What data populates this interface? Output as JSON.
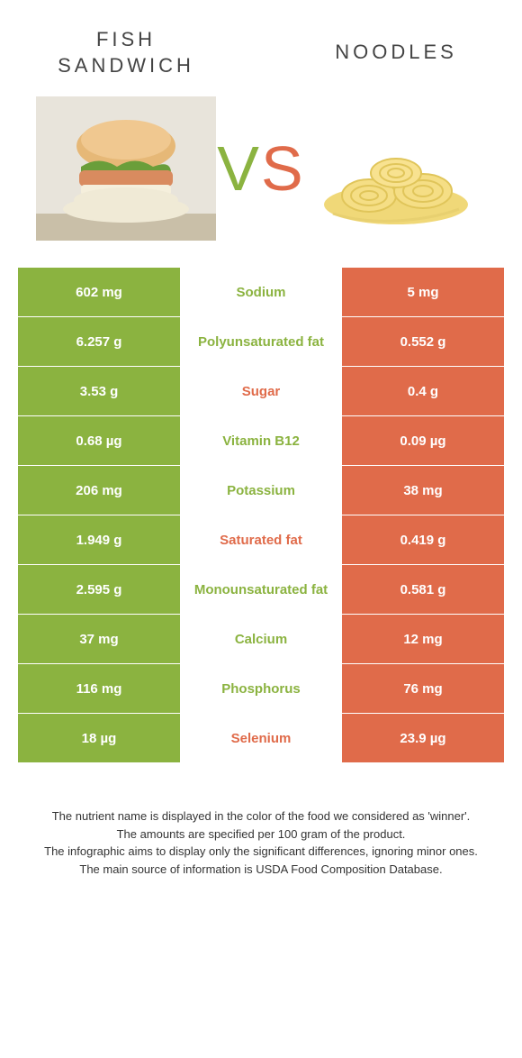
{
  "header": {
    "left_title": "Fish Sandwich",
    "right_title": "Noodles",
    "vs_label": "VS"
  },
  "colors": {
    "left": "#8bb340",
    "right": "#e06b4a",
    "vs_left": "#8bb340",
    "vs_right": "#e06b4a",
    "background": "#ffffff"
  },
  "table": {
    "rows": [
      {
        "left": "602 mg",
        "label": "Sodium",
        "right": "5 mg",
        "winner": "left"
      },
      {
        "left": "6.257 g",
        "label": "Polyunsaturated fat",
        "right": "0.552 g",
        "winner": "left"
      },
      {
        "left": "3.53 g",
        "label": "Sugar",
        "right": "0.4 g",
        "winner": "right"
      },
      {
        "left": "0.68 µg",
        "label": "Vitamin B12",
        "right": "0.09 µg",
        "winner": "left"
      },
      {
        "left": "206 mg",
        "label": "Potassium",
        "right": "38 mg",
        "winner": "left"
      },
      {
        "left": "1.949 g",
        "label": "Saturated fat",
        "right": "0.419 g",
        "winner": "right"
      },
      {
        "left": "2.595 g",
        "label": "Monounsaturated fat",
        "right": "0.581 g",
        "winner": "left"
      },
      {
        "left": "37 mg",
        "label": "Calcium",
        "right": "12 mg",
        "winner": "left"
      },
      {
        "left": "116 mg",
        "label": "Phosphorus",
        "right": "76 mg",
        "winner": "left"
      },
      {
        "left": "18 µg",
        "label": "Selenium",
        "right": "23.9 µg",
        "winner": "right"
      }
    ]
  },
  "footnotes": [
    "The nutrient name is displayed in the color of the food we considered as 'winner'.",
    "The amounts are specified per 100 gram of the product.",
    "The infographic aims to display only the significant differences, ignoring minor ones.",
    "The main source of information is USDA Food Composition Database."
  ]
}
